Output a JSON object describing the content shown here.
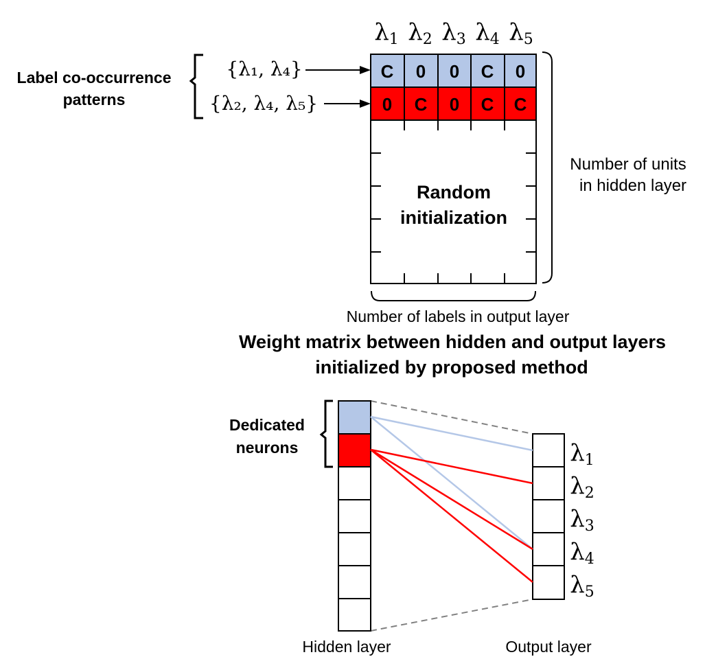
{
  "labels": [
    {
      "symbol": "λ",
      "index": "1"
    },
    {
      "symbol": "λ",
      "index": "2"
    },
    {
      "symbol": "λ",
      "index": "3"
    },
    {
      "symbol": "λ",
      "index": "4"
    },
    {
      "symbol": "λ",
      "index": "5"
    }
  ],
  "patterns_label_line1": "Label co-occurrence",
  "patterns_label_line2": "patterns",
  "patterns": [
    {
      "set_text": "{λ₁, λ₄}",
      "cells": [
        "C",
        "0",
        "0",
        "C",
        "0"
      ],
      "color": "#b4c7e7",
      "connects_to": [
        0,
        3
      ]
    },
    {
      "set_text": "{λ₂, λ₄, λ₅}",
      "cells": [
        "0",
        "C",
        "0",
        "C",
        "C"
      ],
      "color": "#ff0000",
      "connects_to": [
        1,
        3,
        4
      ]
    }
  ],
  "random_init_line1": "Random",
  "random_init_line2": "initialization",
  "hidden_units_line1": "Number of units",
  "hidden_units_line2": "in hidden layer",
  "output_labels_caption": "Number of labels in output layer",
  "matrix_title_line1": "Weight matrix between hidden and output layers",
  "matrix_title_line2": "initialized by proposed method",
  "dedicated_line1": "Dedicated",
  "dedicated_line2": "neurons",
  "hidden_layer_label": "Hidden layer",
  "output_layer_label": "Output layer",
  "colors": {
    "pattern1": "#b4c7e7",
    "pattern2": "#ff0000",
    "pattern1_line": "#b4c7e7",
    "pattern2_line": "#ff0000",
    "dashed": "#808080",
    "stroke": "#000000"
  }
}
